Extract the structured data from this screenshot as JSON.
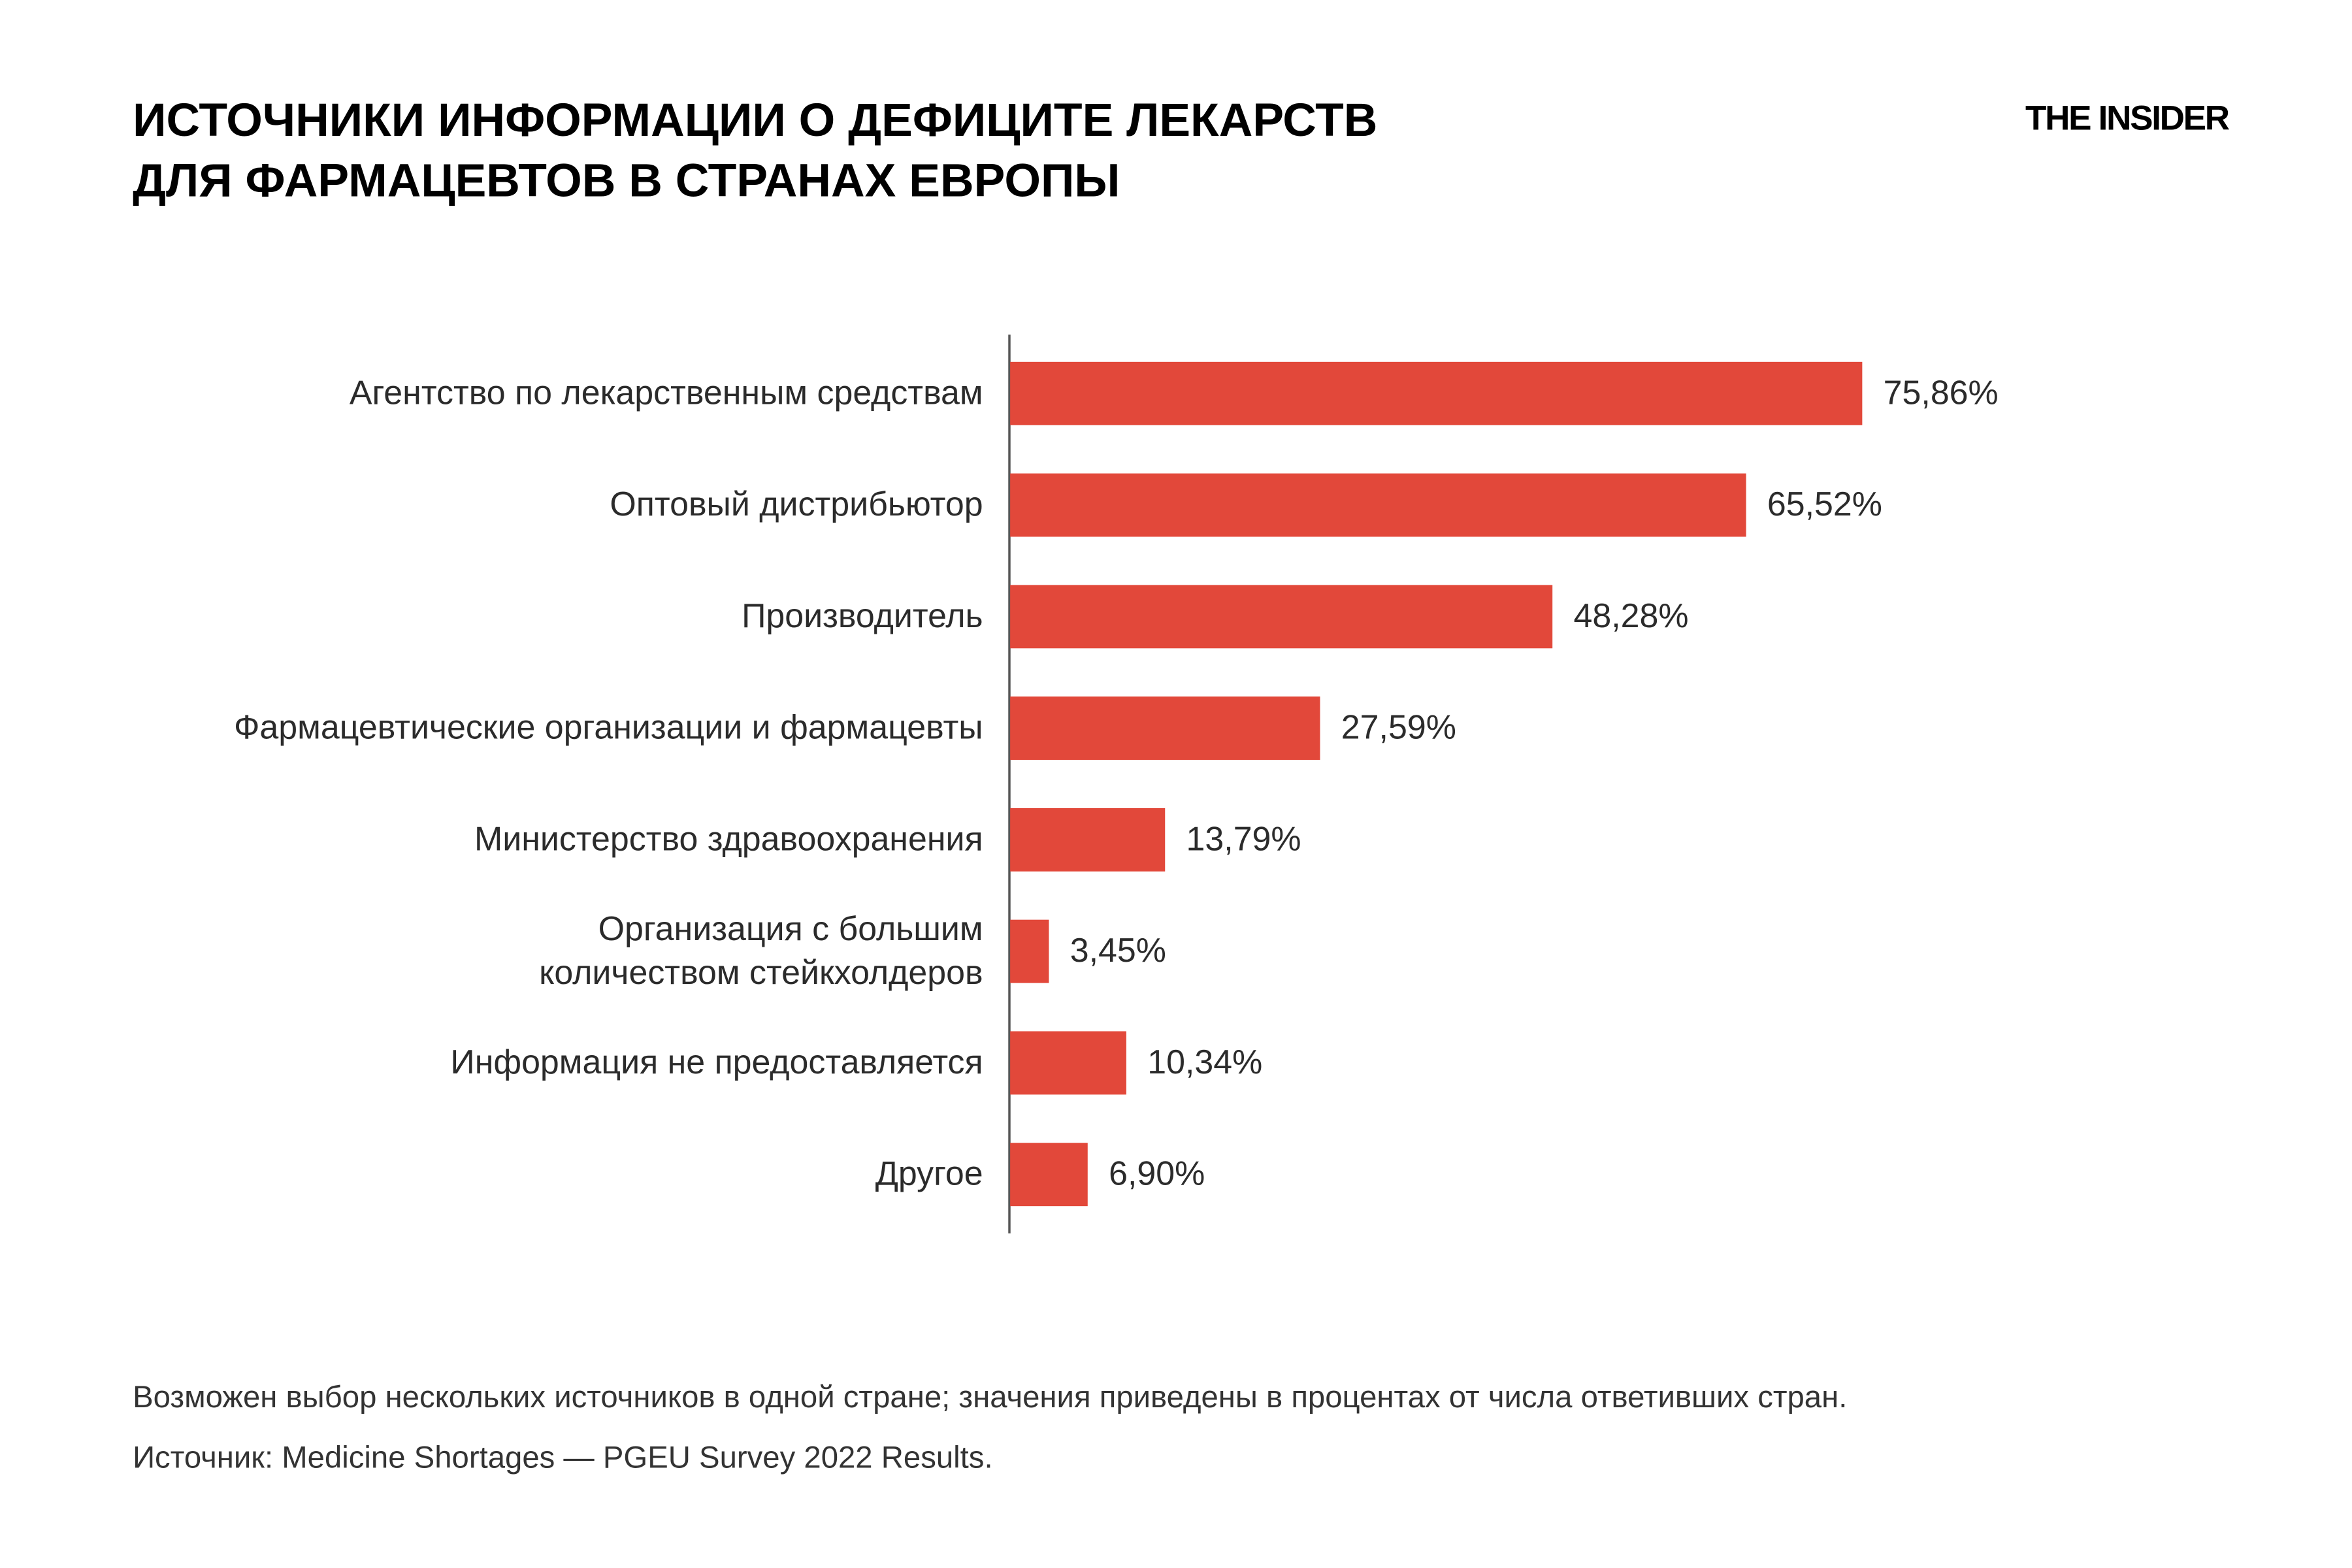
{
  "chart_data": {
    "type": "barh",
    "title": "ИСТОЧНИКИ ИНФОРМАЦИИ О ДЕФИЦИТЕ ЛЕКАРСТВ\nДЛЯ ФАРМАЦЕВТОВ В СТРАНАХ ЕВРОПЫ",
    "brand": "THE INSIDER",
    "categories": [
      "Агентство по лекарственным средствам",
      "Оптовый дистрибьютор",
      "Производитель",
      "Фармацевтические организации и фармацевты",
      "Министерство здравоохранения",
      "Организация с большим\nколичеством стейкхолдеров",
      "Информация не предоставляется",
      "Другое"
    ],
    "values": [
      75.86,
      65.52,
      48.28,
      27.59,
      13.79,
      3.45,
      10.34,
      6.9
    ],
    "value_labels": [
      "75,86%",
      "65,52%",
      "48,28%",
      "27,59%",
      "13,79%",
      "3,45%",
      "10,34%",
      "6,90%"
    ],
    "color": "#e2483a",
    "xlim": [
      0,
      100
    ],
    "grid": false,
    "note": "Возможен выбор нескольких источников в одной стране; значения приведены в процентах от числа ответивших стран.",
    "source": "Источник: Medicine Shortages — PGEU Survey 2022 Results."
  }
}
